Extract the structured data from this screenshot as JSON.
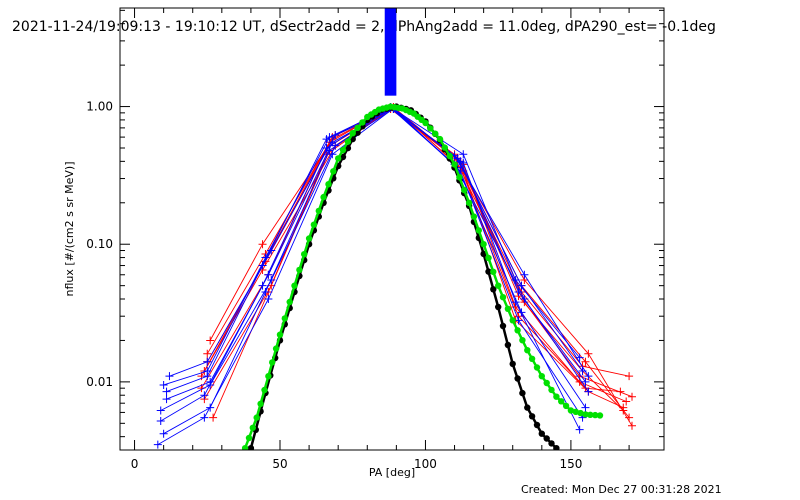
{
  "chart_data": {
    "type": "line",
    "title": "2021-11-24/19:09:13 - 19:10:12 UT, dSectr2add = 2, dPhAng2add = 11.0deg, dPA290_est= -0.1deg",
    "xlabel": "PA [deg]",
    "ylabel": "nflux [#/(cm2 s sr MeV)]",
    "xlim": [
      -5,
      182
    ],
    "ylim": [
      0.0032,
      5.2
    ],
    "yscale": "log",
    "xticks": [
      0,
      50,
      100,
      150
    ],
    "xtick_labels": [
      "0",
      "50",
      "100",
      "150"
    ],
    "yticks": [
      0.01,
      0.1,
      1.0
    ],
    "ytick_labels": [
      "0.01",
      "0.10",
      "1.00"
    ],
    "grid": false,
    "created_label": "Created: Mon Dec 27 00:31:28 2021",
    "colors": {
      "red_series": "#ff0000",
      "blue_series": "#0000ff",
      "green_fit": "#00e000",
      "black_fit": "#000000",
      "bar": "#0000ff"
    },
    "bar": {
      "x": [
        86,
        90
      ],
      "y": [
        1.2,
        5.2
      ]
    },
    "series": [
      {
        "color": "red",
        "x": [
          24,
          44,
          67,
          88,
          112,
          132,
          154,
          168
        ],
        "y": [
          0.012,
          0.07,
          0.55,
          0.98,
          0.4,
          0.042,
          0.012,
          0.0062
        ]
      },
      {
        "color": "red",
        "x": [
          25,
          45,
          68,
          88,
          111,
          133,
          155,
          170
        ],
        "y": [
          0.016,
          0.085,
          0.6,
          0.97,
          0.42,
          0.05,
          0.014,
          0.0055
        ]
      },
      {
        "color": "red",
        "x": [
          23,
          46,
          66,
          89,
          113,
          131,
          153,
          169
        ],
        "y": [
          0.009,
          0.06,
          0.5,
          0.99,
          0.38,
          0.035,
          0.01,
          0.0072
        ]
      },
      {
        "color": "red",
        "x": [
          26,
          44,
          69,
          88,
          110,
          134,
          156,
          171
        ],
        "y": [
          0.02,
          0.1,
          0.62,
          0.96,
          0.45,
          0.055,
          0.016,
          0.0048
        ]
      },
      {
        "color": "red",
        "x": [
          24,
          47,
          67,
          89,
          112,
          132,
          155,
          167
        ],
        "y": [
          0.0075,
          0.05,
          0.48,
          0.98,
          0.36,
          0.03,
          0.009,
          0.0085
        ]
      },
      {
        "color": "red",
        "x": [
          25,
          45,
          68,
          88,
          111,
          133,
          154,
          170
        ],
        "y": [
          0.014,
          0.075,
          0.58,
          0.97,
          0.41,
          0.045,
          0.013,
          0.011
        ]
      },
      {
        "color": "red",
        "x": [
          27,
          46,
          66,
          89,
          113,
          131,
          156,
          168
        ],
        "y": [
          0.0055,
          0.045,
          0.45,
          0.99,
          0.34,
          0.028,
          0.0085,
          0.0065
        ]
      },
      {
        "color": "red",
        "x": [
          23,
          44,
          69,
          88,
          110,
          134,
          153,
          171
        ],
        "y": [
          0.011,
          0.065,
          0.52,
          0.96,
          0.43,
          0.038,
          0.011,
          0.0078
        ]
      },
      {
        "color": "blue",
        "x": [
          10,
          25,
          45,
          67,
          88,
          111,
          133,
          154
        ],
        "y": [
          0.0095,
          0.012,
          0.08,
          0.6,
          0.98,
          0.42,
          0.05,
          0.012
        ]
      },
      {
        "color": "blue",
        "x": [
          11,
          26,
          46,
          68,
          89,
          112,
          132,
          155
        ],
        "y": [
          0.0075,
          0.01,
          0.06,
          0.55,
          0.97,
          0.4,
          0.045,
          0.01
        ]
      },
      {
        "color": "blue",
        "x": [
          9,
          24,
          44,
          66,
          88,
          110,
          134,
          156
        ],
        "y": [
          0.0052,
          0.008,
          0.05,
          0.5,
          0.99,
          0.38,
          0.04,
          0.0085
        ]
      },
      {
        "color": "blue",
        "x": [
          12,
          25,
          47,
          69,
          89,
          113,
          131,
          153
        ],
        "y": [
          0.011,
          0.014,
          0.09,
          0.62,
          0.96,
          0.45,
          0.055,
          0.015
        ]
      },
      {
        "color": "blue",
        "x": [
          10,
          26,
          45,
          67,
          88,
          111,
          133,
          155
        ],
        "y": [
          0.0042,
          0.0065,
          0.045,
          0.48,
          0.98,
          0.36,
          0.032,
          0.0065
        ]
      },
      {
        "color": "blue",
        "x": [
          8,
          24,
          46,
          68,
          89,
          112,
          132,
          154
        ],
        "y": [
          0.0035,
          0.0055,
          0.04,
          0.45,
          0.97,
          0.34,
          0.028,
          0.0055
        ]
      },
      {
        "color": "blue",
        "x": [
          11,
          25,
          44,
          66,
          88,
          110,
          134,
          156
        ],
        "y": [
          0.0085,
          0.011,
          0.07,
          0.58,
          0.99,
          0.44,
          0.06,
          0.011
        ]
      },
      {
        "color": "blue",
        "x": [
          9,
          26,
          47,
          69,
          89,
          113,
          131,
          153
        ],
        "y": [
          0.0062,
          0.0095,
          0.055,
          0.52,
          0.96,
          0.39,
          0.038,
          0.0045
        ]
      }
    ],
    "fits": [
      {
        "name": "green",
        "color": "green",
        "x": [
          38,
          42,
          46,
          50,
          55,
          60,
          65,
          70,
          75,
          80,
          84,
          88,
          92,
          96,
          100,
          105,
          110,
          115,
          120,
          125,
          130,
          135,
          140,
          145,
          150,
          155,
          160
        ],
        "y": [
          0.0033,
          0.0055,
          0.011,
          0.022,
          0.05,
          0.11,
          0.22,
          0.42,
          0.64,
          0.84,
          0.95,
          1.0,
          0.97,
          0.89,
          0.76,
          0.58,
          0.38,
          0.2,
          0.1,
          0.05,
          0.028,
          0.017,
          0.011,
          0.0078,
          0.0062,
          0.0058,
          0.0057
        ]
      },
      {
        "name": "black",
        "color": "black",
        "x": [
          40,
          45,
          50,
          55,
          60,
          65,
          70,
          75,
          80,
          85,
          90,
          95,
          100,
          105,
          110,
          115,
          120,
          125,
          130,
          135,
          140,
          145
        ],
        "y": [
          0.0033,
          0.0083,
          0.02,
          0.045,
          0.1,
          0.2,
          0.37,
          0.58,
          0.8,
          0.95,
          1.0,
          0.94,
          0.78,
          0.57,
          0.36,
          0.19,
          0.085,
          0.035,
          0.0135,
          0.0065,
          0.0042,
          0.0033
        ]
      }
    ]
  }
}
